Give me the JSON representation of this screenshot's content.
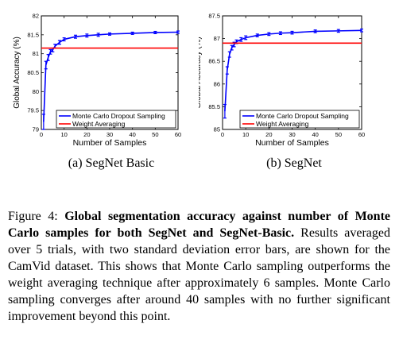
{
  "charts": [
    {
      "type": "line",
      "xlabel": "Number of Samples",
      "ylabel": "Global Accuracy (%)",
      "xlim": [
        0,
        60
      ],
      "ylim": [
        79,
        82
      ],
      "xticks": [
        0,
        10,
        20,
        30,
        40,
        50,
        60
      ],
      "yticks": [
        79,
        79.5,
        80,
        80.5,
        81,
        81.5,
        82
      ],
      "legend_position": "bottom-right",
      "series": [
        {
          "name": "Monte Carlo Dropout Sampling",
          "color": "#0000ff",
          "x": [
            1,
            2,
            3,
            4,
            5,
            6,
            8,
            10,
            15,
            20,
            25,
            30,
            40,
            50,
            60
          ],
          "y": [
            79.2,
            80.7,
            80.9,
            81.05,
            81.1,
            81.2,
            81.3,
            81.38,
            81.45,
            81.48,
            81.5,
            81.52,
            81.54,
            81.56,
            81.57
          ],
          "err": [
            0.2,
            0.1,
            0.08,
            0.06,
            0.05,
            0.05,
            0.05,
            0.04,
            0.04,
            0.04,
            0.04,
            0.03,
            0.03,
            0.03,
            0.03
          ]
        },
        {
          "name": "Weight Averaging",
          "color": "#ff0000",
          "x": [
            0,
            60
          ],
          "y": [
            81.15,
            81.15
          ]
        }
      ]
    },
    {
      "type": "line",
      "xlabel": "Number of Samples",
      "ylabel": "Global Accuracy (%)",
      "xlim": [
        0,
        60
      ],
      "ylim": [
        85,
        87.5
      ],
      "xticks": [
        0,
        10,
        20,
        30,
        40,
        50,
        60
      ],
      "yticks": [
        85,
        85.5,
        86,
        86.5,
        87,
        87.5
      ],
      "legend_position": "bottom-right",
      "series": [
        {
          "name": "Monte Carlo Dropout Sampling",
          "color": "#0000ff",
          "x": [
            1,
            2,
            3,
            4,
            5,
            6,
            8,
            10,
            15,
            20,
            25,
            30,
            40,
            50,
            60
          ],
          "y": [
            85.4,
            86.3,
            86.65,
            86.8,
            86.87,
            86.93,
            86.98,
            87.02,
            87.07,
            87.1,
            87.12,
            87.13,
            87.16,
            87.17,
            87.18
          ],
          "err": [
            0.15,
            0.08,
            0.06,
            0.05,
            0.05,
            0.04,
            0.04,
            0.04,
            0.03,
            0.03,
            0.03,
            0.03,
            0.03,
            0.03,
            0.03
          ]
        },
        {
          "name": "Weight Averaging",
          "color": "#ff0000",
          "x": [
            0,
            60
          ],
          "y": [
            86.9,
            86.9
          ]
        }
      ]
    }
  ],
  "subcaptions": {
    "a": "(a) SegNet Basic",
    "b": "(b) SegNet"
  },
  "caption": {
    "label": "Figure 4:",
    "title": "Global segmentation accuracy against number of Monte Carlo samples for both SegNet and SegNet-Basic.",
    "body": "Results averaged over 5 trials, with two standard deviation error bars, are shown for the CamVid dataset. This shows that Monte Carlo sampling outperforms the weight averaging technique after approximately 6 samples. Monte Carlo sampling converges after around 40 samples with no further significant improvement beyond this point."
  }
}
